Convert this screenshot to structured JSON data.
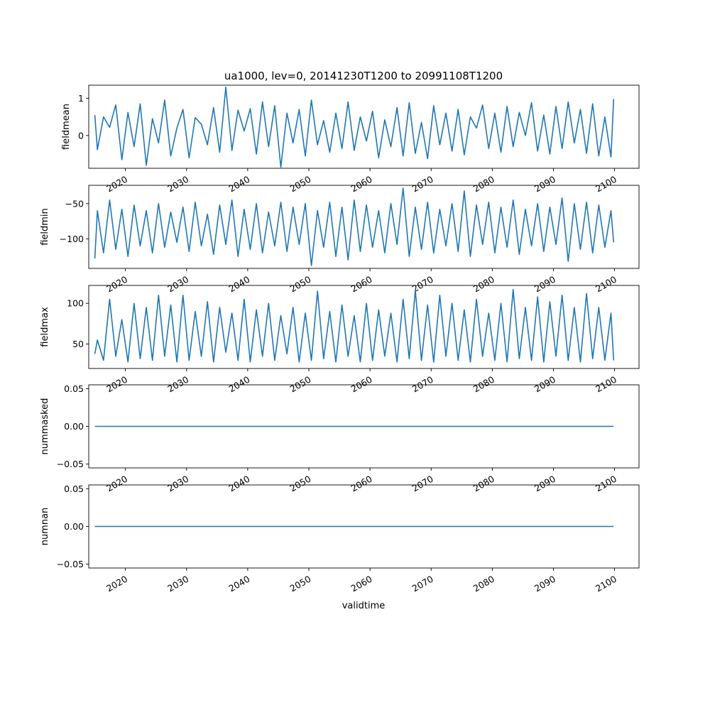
{
  "title": "ua1000, lev=0, 20141230T1200 to 20991108T1200",
  "xlabel": "validtime",
  "x_tick_labels": [
    "2020",
    "2030",
    "2040",
    "2050",
    "2060",
    "2070",
    "2080",
    "2090",
    "2100"
  ],
  "series_color": "#1f77b4",
  "chart_data": [
    {
      "type": "line",
      "ylabel": "fieldmean",
      "x_range": [
        "2014-12-30",
        "2099-11-08"
      ],
      "ylim": [
        -0.88,
        1.35
      ],
      "yticks": [
        1,
        0
      ],
      "ytick_labels": [
        "1",
        "0"
      ],
      "x": [
        "2014-12-30",
        "2015-06-01",
        "2016-06-01",
        "2017-06-01",
        "2018-06-01",
        "2019-06-01",
        "2020-06-01",
        "2021-06-01",
        "2022-06-01",
        "2023-06-01",
        "2024-06-01",
        "2025-06-01",
        "2026-06-01",
        "2027-06-01",
        "2028-06-01",
        "2029-06-01",
        "2030-06-01",
        "2031-06-01",
        "2032-06-01",
        "2033-06-01",
        "2034-06-01",
        "2035-06-01",
        "2036-06-01",
        "2037-06-01",
        "2038-06-01",
        "2039-06-01",
        "2040-06-01",
        "2041-06-01",
        "2042-06-01",
        "2043-06-01",
        "2044-06-01",
        "2045-06-01",
        "2046-06-01",
        "2047-06-01",
        "2048-06-01",
        "2049-06-01",
        "2050-06-01",
        "2051-06-01",
        "2052-06-01",
        "2053-06-01",
        "2054-06-01",
        "2055-06-01",
        "2056-06-01",
        "2057-06-01",
        "2058-06-01",
        "2059-06-01",
        "2060-06-01",
        "2061-06-01",
        "2062-06-01",
        "2063-06-01",
        "2064-06-01",
        "2065-06-01",
        "2066-06-01",
        "2067-06-01",
        "2068-06-01",
        "2069-06-01",
        "2070-06-01",
        "2071-06-01",
        "2072-06-01",
        "2073-06-01",
        "2074-06-01",
        "2075-06-01",
        "2076-06-01",
        "2077-06-01",
        "2078-06-01",
        "2079-06-01",
        "2080-06-01",
        "2081-06-01",
        "2082-06-01",
        "2083-06-01",
        "2084-06-01",
        "2085-06-01",
        "2086-06-01",
        "2087-06-01",
        "2088-06-01",
        "2089-06-01",
        "2090-06-01",
        "2091-06-01",
        "2092-06-01",
        "2093-06-01",
        "2094-06-01",
        "2095-06-01",
        "2096-06-01",
        "2097-06-01",
        "2098-06-01",
        "2099-06-01",
        "2099-11-08"
      ],
      "y": [
        0.55,
        -0.38,
        0.5,
        0.22,
        0.82,
        -0.65,
        0.62,
        -0.3,
        0.85,
        -0.8,
        0.45,
        -0.2,
        0.95,
        -0.55,
        0.2,
        0.7,
        -0.6,
        0.48,
        0.3,
        -0.25,
        0.75,
        -0.45,
        1.3,
        -0.4,
        0.68,
        0.12,
        0.72,
        -0.5,
        0.9,
        -0.3,
        0.8,
        -0.85,
        0.6,
        -0.2,
        0.7,
        -0.55,
        0.95,
        -0.25,
        0.4,
        -0.45,
        0.6,
        -0.35,
        0.9,
        -0.4,
        0.5,
        -0.15,
        0.65,
        -0.6,
        0.42,
        -0.3,
        0.75,
        -0.55,
        0.88,
        -0.48,
        0.35,
        -0.62,
        0.8,
        -0.25,
        0.6,
        -0.42,
        0.7,
        -0.52,
        0.5,
        0.2,
        0.82,
        -0.35,
        0.6,
        -0.45,
        0.78,
        -0.3,
        0.62,
        0.0,
        0.88,
        -0.42,
        0.55,
        -0.5,
        0.78,
        -0.35,
        0.9,
        -0.2,
        0.7,
        -0.48,
        0.85,
        -0.55,
        0.5,
        -0.58,
        0.98
      ]
    },
    {
      "type": "line",
      "ylabel": "fieldmin",
      "x_range": [
        "2014-12-30",
        "2099-11-08"
      ],
      "ylim": [
        -142,
        -24
      ],
      "yticks": [
        -50,
        -100
      ],
      "ytick_labels": [
        "−50",
        "−100"
      ],
      "x": [
        "2014-12-30",
        "2015-06-01",
        "2016-06-01",
        "2017-06-01",
        "2018-06-01",
        "2019-06-01",
        "2020-06-01",
        "2021-06-01",
        "2022-06-01",
        "2023-06-01",
        "2024-06-01",
        "2025-06-01",
        "2026-06-01",
        "2027-06-01",
        "2028-06-01",
        "2029-06-01",
        "2030-06-01",
        "2031-06-01",
        "2032-06-01",
        "2033-06-01",
        "2034-06-01",
        "2035-06-01",
        "2036-06-01",
        "2037-06-01",
        "2038-06-01",
        "2039-06-01",
        "2040-06-01",
        "2041-06-01",
        "2042-06-01",
        "2043-06-01",
        "2044-06-01",
        "2045-06-01",
        "2046-06-01",
        "2047-06-01",
        "2048-06-01",
        "2049-06-01",
        "2050-06-01",
        "2051-06-01",
        "2052-06-01",
        "2053-06-01",
        "2054-06-01",
        "2055-06-01",
        "2056-06-01",
        "2057-06-01",
        "2058-06-01",
        "2059-06-01",
        "2060-06-01",
        "2061-06-01",
        "2062-06-01",
        "2063-06-01",
        "2064-06-01",
        "2065-06-01",
        "2066-06-01",
        "2067-06-01",
        "2068-06-01",
        "2069-06-01",
        "2070-06-01",
        "2071-06-01",
        "2072-06-01",
        "2073-06-01",
        "2074-06-01",
        "2075-06-01",
        "2076-06-01",
        "2077-06-01",
        "2078-06-01",
        "2079-06-01",
        "2080-06-01",
        "2081-06-01",
        "2082-06-01",
        "2083-06-01",
        "2084-06-01",
        "2085-06-01",
        "2086-06-01",
        "2087-06-01",
        "2088-06-01",
        "2089-06-01",
        "2090-06-01",
        "2091-06-01",
        "2092-06-01",
        "2093-06-01",
        "2094-06-01",
        "2095-06-01",
        "2096-06-01",
        "2097-06-01",
        "2098-06-01",
        "2099-06-01",
        "2099-11-08"
      ],
      "y": [
        -128,
        -60,
        -120,
        -45,
        -115,
        -58,
        -125,
        -52,
        -110,
        -60,
        -120,
        -50,
        -112,
        -62,
        -105,
        -55,
        -118,
        -48,
        -110,
        -65,
        -122,
        -52,
        -108,
        -45,
        -125,
        -58,
        -115,
        -50,
        -120,
        -62,
        -110,
        -48,
        -118,
        -55,
        -108,
        -50,
        -138,
        -60,
        -112,
        -48,
        -125,
        -55,
        -130,
        -45,
        -118,
        -52,
        -112,
        -60,
        -120,
        -50,
        -108,
        -28,
        -125,
        -55,
        -115,
        -48,
        -120,
        -58,
        -110,
        -50,
        -118,
        -32,
        -125,
        -52,
        -108,
        -48,
        -120,
        -55,
        -112,
        -45,
        -122,
        -58,
        -110,
        -50,
        -118,
        -55,
        -108,
        -42,
        -132,
        -50,
        -115,
        -48,
        -120,
        -52,
        -112,
        -60,
        -105
      ]
    },
    {
      "type": "line",
      "ylabel": "fieldmax",
      "x_range": [
        "2014-12-30",
        "2099-11-08"
      ],
      "ylim": [
        20,
        122
      ],
      "yticks": [
        100,
        50
      ],
      "ytick_labels": [
        "100",
        "50"
      ],
      "x": [
        "2014-12-30",
        "2015-06-01",
        "2016-06-01",
        "2017-06-01",
        "2018-06-01",
        "2019-06-01",
        "2020-06-01",
        "2021-06-01",
        "2022-06-01",
        "2023-06-01",
        "2024-06-01",
        "2025-06-01",
        "2026-06-01",
        "2027-06-01",
        "2028-06-01",
        "2029-06-01",
        "2030-06-01",
        "2031-06-01",
        "2032-06-01",
        "2033-06-01",
        "2034-06-01",
        "2035-06-01",
        "2036-06-01",
        "2037-06-01",
        "2038-06-01",
        "2039-06-01",
        "2040-06-01",
        "2041-06-01",
        "2042-06-01",
        "2043-06-01",
        "2044-06-01",
        "2045-06-01",
        "2046-06-01",
        "2047-06-01",
        "2048-06-01",
        "2049-06-01",
        "2050-06-01",
        "2051-06-01",
        "2052-06-01",
        "2053-06-01",
        "2054-06-01",
        "2055-06-01",
        "2056-06-01",
        "2057-06-01",
        "2058-06-01",
        "2059-06-01",
        "2060-06-01",
        "2061-06-01",
        "2062-06-01",
        "2063-06-01",
        "2064-06-01",
        "2065-06-01",
        "2066-06-01",
        "2067-06-01",
        "2068-06-01",
        "2069-06-01",
        "2070-06-01",
        "2071-06-01",
        "2072-06-01",
        "2073-06-01",
        "2074-06-01",
        "2075-06-01",
        "2076-06-01",
        "2077-06-01",
        "2078-06-01",
        "2079-06-01",
        "2080-06-01",
        "2081-06-01",
        "2082-06-01",
        "2083-06-01",
        "2084-06-01",
        "2085-06-01",
        "2086-06-01",
        "2087-06-01",
        "2088-06-01",
        "2089-06-01",
        "2090-06-01",
        "2091-06-01",
        "2092-06-01",
        "2093-06-01",
        "2094-06-01",
        "2095-06-01",
        "2096-06-01",
        "2097-06-01",
        "2098-06-01",
        "2099-06-01",
        "2099-11-08"
      ],
      "y": [
        38,
        55,
        30,
        105,
        35,
        80,
        28,
        100,
        32,
        95,
        30,
        110,
        35,
        98,
        28,
        110,
        30,
        90,
        35,
        102,
        28,
        95,
        40,
        88,
        30,
        105,
        28,
        92,
        35,
        100,
        30,
        85,
        38,
        95,
        28,
        88,
        30,
        115,
        32,
        90,
        28,
        98,
        35,
        85,
        28,
        100,
        30,
        92,
        35,
        88,
        28,
        105,
        32,
        116,
        30,
        98,
        28,
        110,
        35,
        100,
        30,
        92,
        28,
        105,
        35,
        88,
        30,
        100,
        28,
        117,
        32,
        95,
        30,
        108,
        28,
        102,
        35,
        110,
        30,
        95,
        28,
        112,
        32,
        95,
        30,
        88,
        30
      ]
    },
    {
      "type": "line",
      "ylabel": "nummasked",
      "x_range": [
        "2014-12-30",
        "2099-11-08"
      ],
      "ylim": [
        -0.055,
        0.055
      ],
      "yticks": [
        0.05,
        0.0,
        -0.05
      ],
      "ytick_labels": [
        "0.05",
        "0.00",
        "−0.05"
      ],
      "x": [
        "2014-12-30",
        "2099-11-08"
      ],
      "y": [
        0,
        0
      ]
    },
    {
      "type": "line",
      "ylabel": "numnan",
      "x_range": [
        "2014-12-30",
        "2099-11-08"
      ],
      "ylim": [
        -0.055,
        0.055
      ],
      "yticks": [
        0.05,
        0.0,
        -0.05
      ],
      "ytick_labels": [
        "0.05",
        "0.00",
        "−0.05"
      ],
      "x": [
        "2014-12-30",
        "2099-11-08"
      ],
      "y": [
        0,
        0
      ]
    }
  ]
}
